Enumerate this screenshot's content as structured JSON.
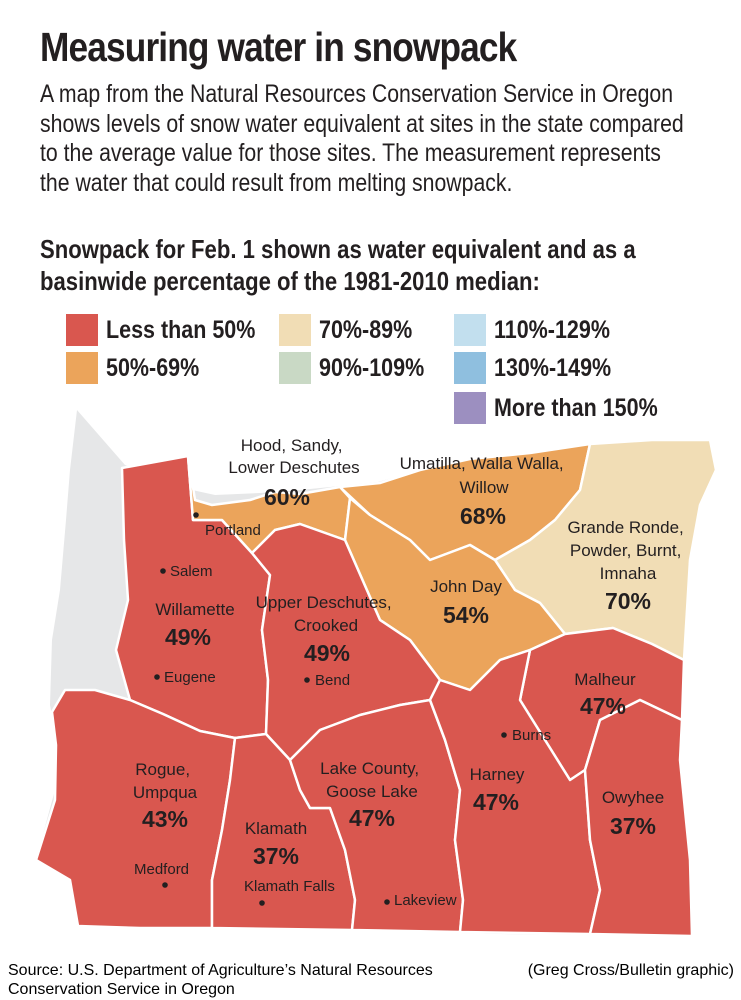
{
  "title": "Measuring water in snowpack",
  "intro": "A map from the Natural Resources Conservation Service in Oregon shows levels of snow water equivalent at sites in the state compared to the average value for those sites. The measurement represents the water that could result from melting snowpack.",
  "subhead": "Snowpack for Feb. 1 shown as water equivalent and as a basinwide percentage of the 1981-2010 median:",
  "colors": {
    "lt50": "#d9574f",
    "p50_69": "#eba45b",
    "p70_89": "#f1ddb5",
    "p90_109": "#c9d9c5",
    "p110_129": "#c2dfee",
    "p130_149": "#8fbfdf",
    "gt150": "#9c8fc0",
    "land": "#e6e7e8",
    "border": "#ffffff"
  },
  "legend": [
    {
      "label": "Less than 50%",
      "color_key": "lt50"
    },
    {
      "label": "50%-69%",
      "color_key": "p50_69"
    },
    {
      "label": "70%-89%",
      "color_key": "p70_89"
    },
    {
      "label": "90%-109%",
      "color_key": "p90_109"
    },
    {
      "label": "110%-129%",
      "color_key": "p110_129"
    },
    {
      "label": "130%-149%",
      "color_key": "p130_149"
    },
    {
      "label": "More than 150%",
      "color_key": "gt150"
    }
  ],
  "basins": {
    "hood_sandy": {
      "name_lines": [
        "Hood, Sandy,",
        "Lower Deschutes"
      ],
      "percent": "60%",
      "value": 60
    },
    "umatilla": {
      "name_lines": [
        "Umatilla, Walla Walla,",
        "Willow"
      ],
      "percent": "68%",
      "value": 68
    },
    "grande_ronde": {
      "name_lines": [
        "Grande Ronde,",
        "Powder, Burnt,",
        "Imnaha"
      ],
      "percent": "70%",
      "value": 70
    },
    "john_day": {
      "name_lines": [
        "John Day"
      ],
      "percent": "54%",
      "value": 54
    },
    "willamette": {
      "name_lines": [
        "Willamette"
      ],
      "percent": "49%",
      "value": 49
    },
    "upper_deschutes": {
      "name_lines": [
        "Upper Deschutes,",
        "Crooked"
      ],
      "percent": "49%",
      "value": 49
    },
    "malheur": {
      "name_lines": [
        "Malheur"
      ],
      "percent": "47%",
      "value": 47
    },
    "rogue_umpqua": {
      "name_lines": [
        "Rogue,",
        "Umpqua"
      ],
      "percent": "43%",
      "value": 43
    },
    "lake_county": {
      "name_lines": [
        "Lake County,",
        "Goose Lake"
      ],
      "percent": "47%",
      "value": 47
    },
    "harney": {
      "name_lines": [
        "Harney"
      ],
      "percent": "47%",
      "value": 47
    },
    "klamath": {
      "name_lines": [
        "Klamath"
      ],
      "percent": "37%",
      "value": 37
    },
    "owyhee": {
      "name_lines": [
        "Owyhee"
      ],
      "percent": "37%",
      "value": 37
    }
  },
  "cities": {
    "portland": "Portland",
    "salem": "Salem",
    "eugene": "Eugene",
    "bend": "Bend",
    "burns": "Burns",
    "medford": "Medford",
    "klamath_falls": "Klamath Falls",
    "lakeview": "Lakeview"
  },
  "footer": {
    "source": "Source: U.S. Department of Agriculture’s Natural Resources Conservation Service in Oregon",
    "credit": "(Greg Cross/Bulletin graphic)"
  }
}
